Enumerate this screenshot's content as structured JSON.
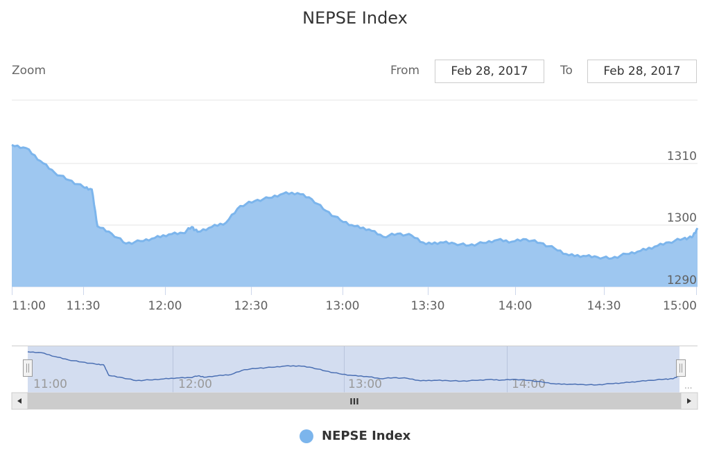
{
  "title": "NEPSE Index",
  "range_selector": {
    "zoom_label": "Zoom",
    "from_label": "From",
    "from_value": "Feb 28, 2017",
    "to_label": "To",
    "to_value": "Feb 28, 2017"
  },
  "navigator": {
    "labels": [
      "11:00",
      "12:00",
      "13:00",
      "14:00"
    ],
    "left_handle_icon": "grip-handle",
    "right_handle_icon": "grip-handle",
    "scrollbar_grip": "III",
    "ellipsis": "..."
  },
  "legend": {
    "label": "NEPSE Index",
    "color": "#7cb5ec"
  },
  "colors": {
    "series_fill": "#9ec7f0",
    "series_line": "#7cb5ec",
    "navigator_line": "#4a6fb3",
    "navigator_mask": "#d3ddf0",
    "gridline": "#e6e6e6",
    "scrollbar": "#cccccc"
  },
  "chart_data": {
    "type": "area",
    "title": "NEPSE Index",
    "xlabel": "",
    "ylabel": "",
    "x_tick_labels": [
      "11:00",
      "11:30",
      "12:00",
      "12:30",
      "13:00",
      "13:30",
      "14:00",
      "14:30",
      "15:00"
    ],
    "y_tick_labels": [
      "1290",
      "1300",
      "1310"
    ],
    "ylim": [
      1290,
      1320
    ],
    "grid": true,
    "legend_position": "bottom",
    "series": [
      {
        "name": "NEPSE Index",
        "x": [
          "11:00",
          "11:05",
          "11:10",
          "11:15",
          "11:20",
          "11:25",
          "11:28",
          "11:30",
          "11:35",
          "11:40",
          "11:45",
          "11:50",
          "11:55",
          "12:00",
          "12:03",
          "12:05",
          "12:10",
          "12:15",
          "12:20",
          "12:25",
          "12:30",
          "12:35",
          "12:40",
          "12:45",
          "12:50",
          "12:55",
          "13:00",
          "13:05",
          "13:10",
          "13:15",
          "13:20",
          "13:25",
          "13:30",
          "13:35",
          "13:40",
          "13:45",
          "13:50",
          "13:55",
          "14:00",
          "14:05",
          "14:10",
          "14:15",
          "14:20",
          "14:25",
          "14:30",
          "14:35",
          "14:40",
          "14:45",
          "14:50",
          "14:55",
          "14:58",
          "15:00"
        ],
        "values": [
          1313.0,
          1312.5,
          1310.4,
          1308.5,
          1307.3,
          1306.2,
          1305.8,
          1299.8,
          1298.6,
          1297.0,
          1297.4,
          1297.9,
          1298.5,
          1298.7,
          1299.7,
          1298.9,
          1299.7,
          1300.4,
          1303.1,
          1303.9,
          1304.4,
          1305.1,
          1305.2,
          1304.2,
          1302.3,
          1300.8,
          1299.8,
          1299.3,
          1298.1,
          1298.6,
          1298.3,
          1296.9,
          1297.2,
          1297.0,
          1296.7,
          1297.1,
          1297.6,
          1297.3,
          1297.7,
          1297.1,
          1296.2,
          1295.1,
          1295.0,
          1294.8,
          1294.6,
          1295.3,
          1295.8,
          1296.5,
          1297.2,
          1297.8,
          1298.0,
          1299.5
        ]
      }
    ]
  }
}
